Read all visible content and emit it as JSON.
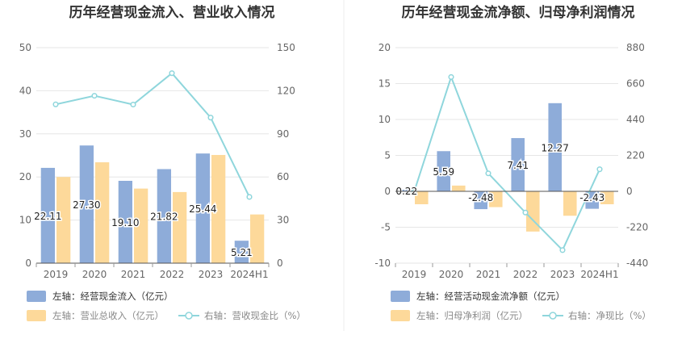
{
  "chart_data": [
    {
      "type": "bar+line",
      "title": "历年经营现金流入、营业收入情况",
      "categories": [
        "2019",
        "2020",
        "2021",
        "2022",
        "2023",
        "2024H1"
      ],
      "left_axis": {
        "ticks": [
          "0",
          "10",
          "20",
          "30",
          "40",
          "50"
        ],
        "ylim": [
          0,
          50
        ]
      },
      "right_axis": {
        "ticks": [
          "0",
          "30",
          "60",
          "90",
          "120",
          "150"
        ],
        "ylim": [
          0,
          150
        ]
      },
      "series": [
        {
          "name": "左轴：经营现金流入（亿元）",
          "axis": "left",
          "kind": "bar",
          "values": [
            22.11,
            27.3,
            19.1,
            21.82,
            25.44,
            5.21
          ],
          "labels": [
            "22.11",
            "27.30",
            "19.10",
            "21.82",
            "25.44",
            "5.21"
          ],
          "color": "#8eacd9"
        },
        {
          "name": "左轴：营业总收入（亿元）",
          "axis": "left",
          "kind": "bar",
          "values": [
            20.0,
            23.4,
            17.3,
            16.5,
            25.1,
            11.3
          ],
          "color": "#fdd99a"
        },
        {
          "name": "右轴：营收现金比（%）",
          "axis": "right",
          "kind": "line",
          "values": [
            110.5,
            116.5,
            110.4,
            132.2,
            101.3,
            46.1
          ],
          "color": "#8fd6dc"
        }
      ]
    },
    {
      "type": "bar+line",
      "title": "历年经营现金流净额、归母净利润情况",
      "categories": [
        "2019",
        "2020",
        "2021",
        "2022",
        "2023",
        "2024H1"
      ],
      "left_axis": {
        "ticks": [
          "-10",
          "-5",
          "0",
          "5",
          "10",
          "15",
          "20"
        ],
        "ylim": [
          -10,
          20
        ]
      },
      "right_axis": {
        "ticks": [
          "-440",
          "-220",
          "0",
          "220",
          "440",
          "660",
          "880"
        ],
        "ylim": [
          -440,
          880
        ]
      },
      "series": [
        {
          "name": "左轴：经营活动现金流净额（亿元）",
          "axis": "left",
          "kind": "bar",
          "values": [
            0.22,
            5.59,
            -2.48,
            7.41,
            12.27,
            -2.43
          ],
          "labels": [
            "0.22",
            "5.59",
            "-2.48",
            "7.41",
            "12.27",
            "-2.43"
          ],
          "color": "#8eacd9"
        },
        {
          "name": "左轴：归母净利润（亿元）",
          "axis": "left",
          "kind": "bar",
          "values": [
            -1.8,
            0.8,
            -2.2,
            -5.6,
            -3.4,
            -1.8
          ],
          "color": "#fdd99a"
        },
        {
          "name": "右轴：净现比（%）",
          "axis": "right",
          "kind": "line",
          "values": [
            -5,
            700,
            110,
            -130,
            -360,
            135
          ],
          "color": "#8fd6dc"
        }
      ]
    }
  ]
}
